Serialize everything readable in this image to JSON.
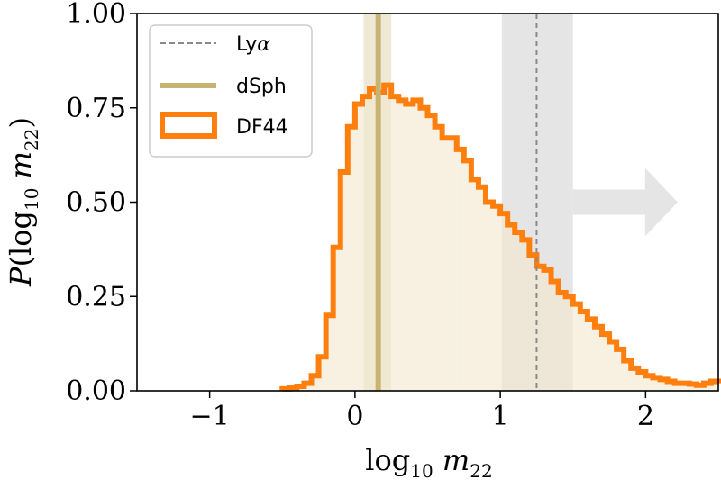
{
  "chart_data": {
    "type": "histogram",
    "xlabel": "log10 m22",
    "ylabel": "P(log10 m22)",
    "xlim": [
      -1.5,
      2.5
    ],
    "ylim": [
      0,
      1.0
    ],
    "x_ticks": [
      -1,
      0,
      1,
      2
    ],
    "x_tick_labels": [
      "−1",
      "0",
      "1",
      "2"
    ],
    "y_ticks": [
      0.0,
      0.25,
      0.5,
      0.75,
      1.0
    ],
    "y_tick_labels": [
      "0.00",
      "0.25",
      "0.50",
      "0.75",
      "1.00"
    ],
    "grid": false,
    "legend": {
      "position": "top-left",
      "entries": [
        {
          "label": "Lyα",
          "style": "dashed",
          "color": "#888888"
        },
        {
          "label": "dSph",
          "style": "line",
          "color": "#c8b472"
        },
        {
          "label": "DF44",
          "style": "step-outline",
          "color": "#ff7f0e"
        }
      ]
    },
    "lya": {
      "value": 1.25,
      "band": [
        1.01,
        1.5
      ],
      "arrow_to": 2.22
    },
    "dsph": {
      "value": 0.16,
      "band": [
        0.06,
        0.25
      ]
    },
    "series": [
      {
        "name": "DF44",
        "color": "#ff7f0e",
        "x": [
          -0.5,
          -0.45,
          -0.4,
          -0.35,
          -0.3,
          -0.25,
          -0.2,
          -0.15,
          -0.1,
          -0.05,
          0.0,
          0.05,
          0.1,
          0.15,
          0.2,
          0.25,
          0.3,
          0.35,
          0.4,
          0.45,
          0.5,
          0.55,
          0.6,
          0.65,
          0.7,
          0.75,
          0.8,
          0.85,
          0.9,
          0.95,
          1.0,
          1.05,
          1.1,
          1.15,
          1.2,
          1.25,
          1.3,
          1.35,
          1.4,
          1.45,
          1.5,
          1.55,
          1.6,
          1.65,
          1.7,
          1.75,
          1.8,
          1.85,
          1.9,
          1.95,
          2.0,
          2.05,
          2.1,
          2.15,
          2.2,
          2.25,
          2.3,
          2.35,
          2.4,
          2.45,
          2.5
        ],
        "y": [
          0.005,
          0.008,
          0.012,
          0.02,
          0.04,
          0.09,
          0.2,
          0.38,
          0.58,
          0.7,
          0.76,
          0.78,
          0.8,
          0.79,
          0.81,
          0.78,
          0.77,
          0.76,
          0.77,
          0.75,
          0.73,
          0.7,
          0.67,
          0.67,
          0.64,
          0.61,
          0.56,
          0.54,
          0.5,
          0.49,
          0.47,
          0.44,
          0.42,
          0.4,
          0.36,
          0.33,
          0.32,
          0.29,
          0.26,
          0.25,
          0.23,
          0.21,
          0.19,
          0.17,
          0.15,
          0.13,
          0.11,
          0.08,
          0.06,
          0.05,
          0.04,
          0.035,
          0.03,
          0.025,
          0.02,
          0.02,
          0.018,
          0.015,
          0.02,
          0.025,
          0.02
        ]
      }
    ]
  }
}
